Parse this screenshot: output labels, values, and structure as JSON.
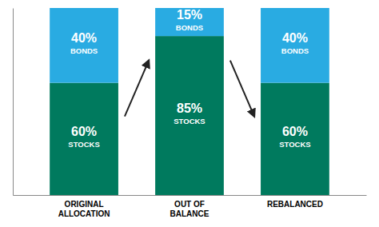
{
  "chart_data": {
    "type": "bar",
    "stacked": true,
    "categories": [
      "ORIGINAL\nALLOCATION",
      "OUT OF\nBALANCE",
      "REBALANCED"
    ],
    "series": [
      {
        "name": "STOCKS",
        "color": "#007A5E",
        "values": [
          60,
          85,
          60
        ],
        "value_labels": [
          "60%",
          "85%",
          "60%"
        ]
      },
      {
        "name": "BONDS",
        "color": "#29ABE2",
        "values": [
          40,
          15,
          40
        ],
        "value_labels": [
          "40%",
          "15%",
          "40%"
        ]
      }
    ],
    "ylim": [
      0,
      100
    ],
    "data_labels": true,
    "tick_labels": false,
    "grid": false
  }
}
